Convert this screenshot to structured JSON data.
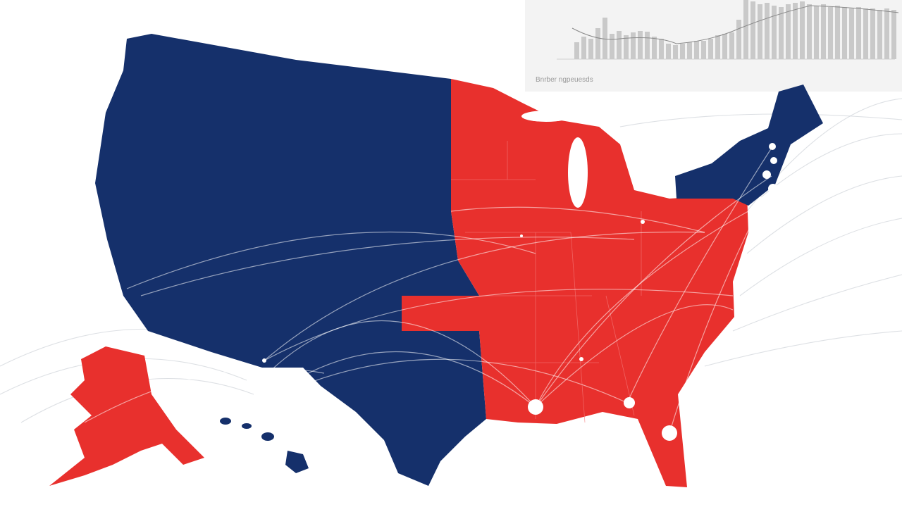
{
  "inset": {
    "caption": "Bnrber ngpeuesds"
  }
}
